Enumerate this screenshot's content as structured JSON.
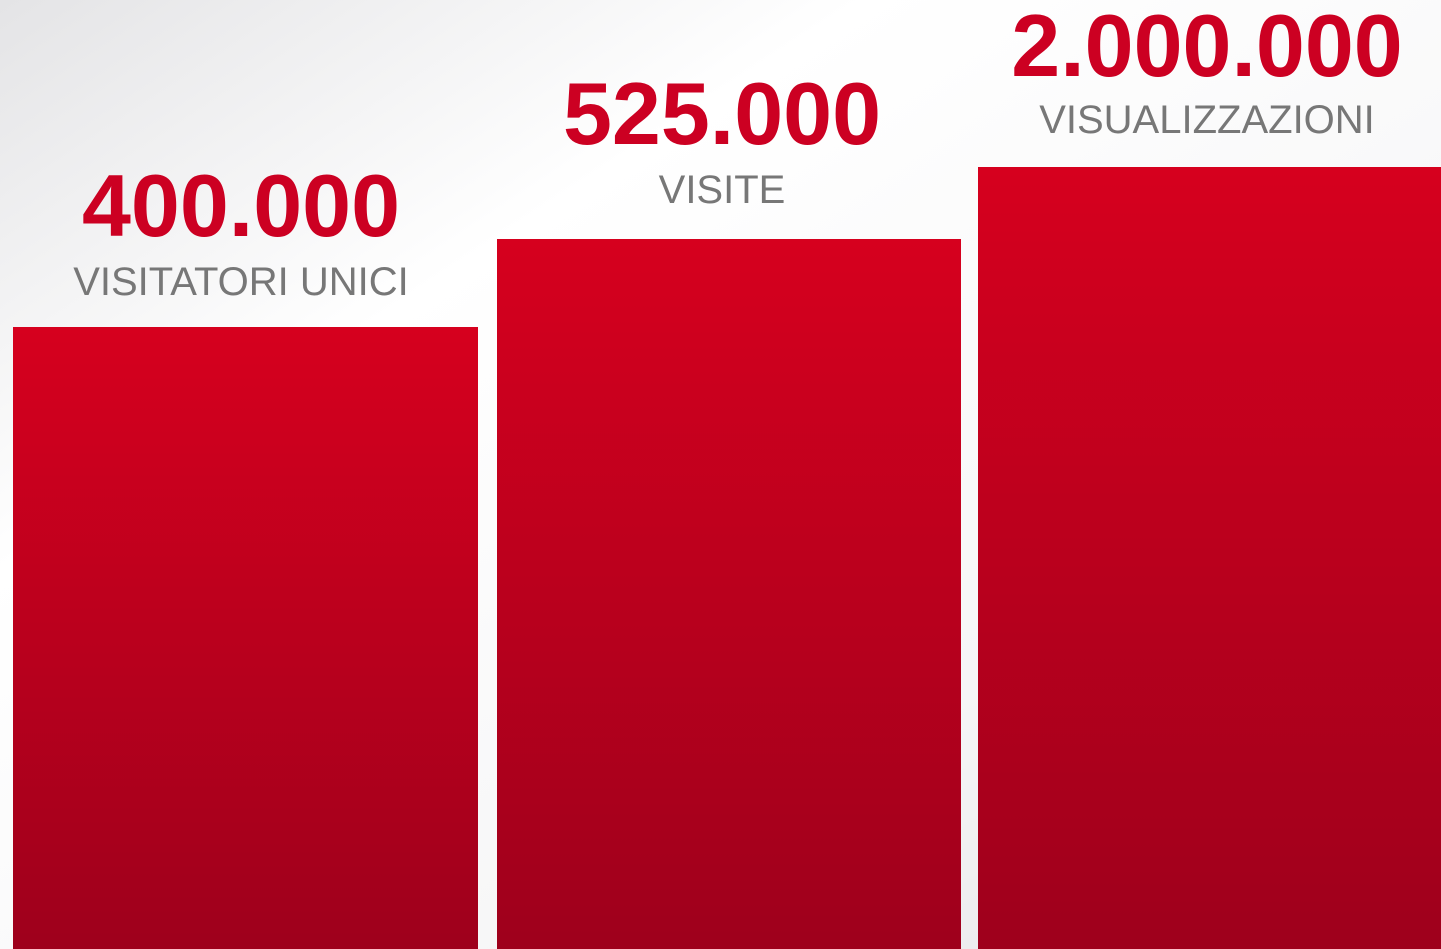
{
  "items": [
    {
      "value": "400.000",
      "label": "VISITATORI UNICI"
    },
    {
      "value": "525.000",
      "label": "VISITE"
    },
    {
      "value": "2.000.000",
      "label": "VISUALIZZAZIONI"
    }
  ]
}
